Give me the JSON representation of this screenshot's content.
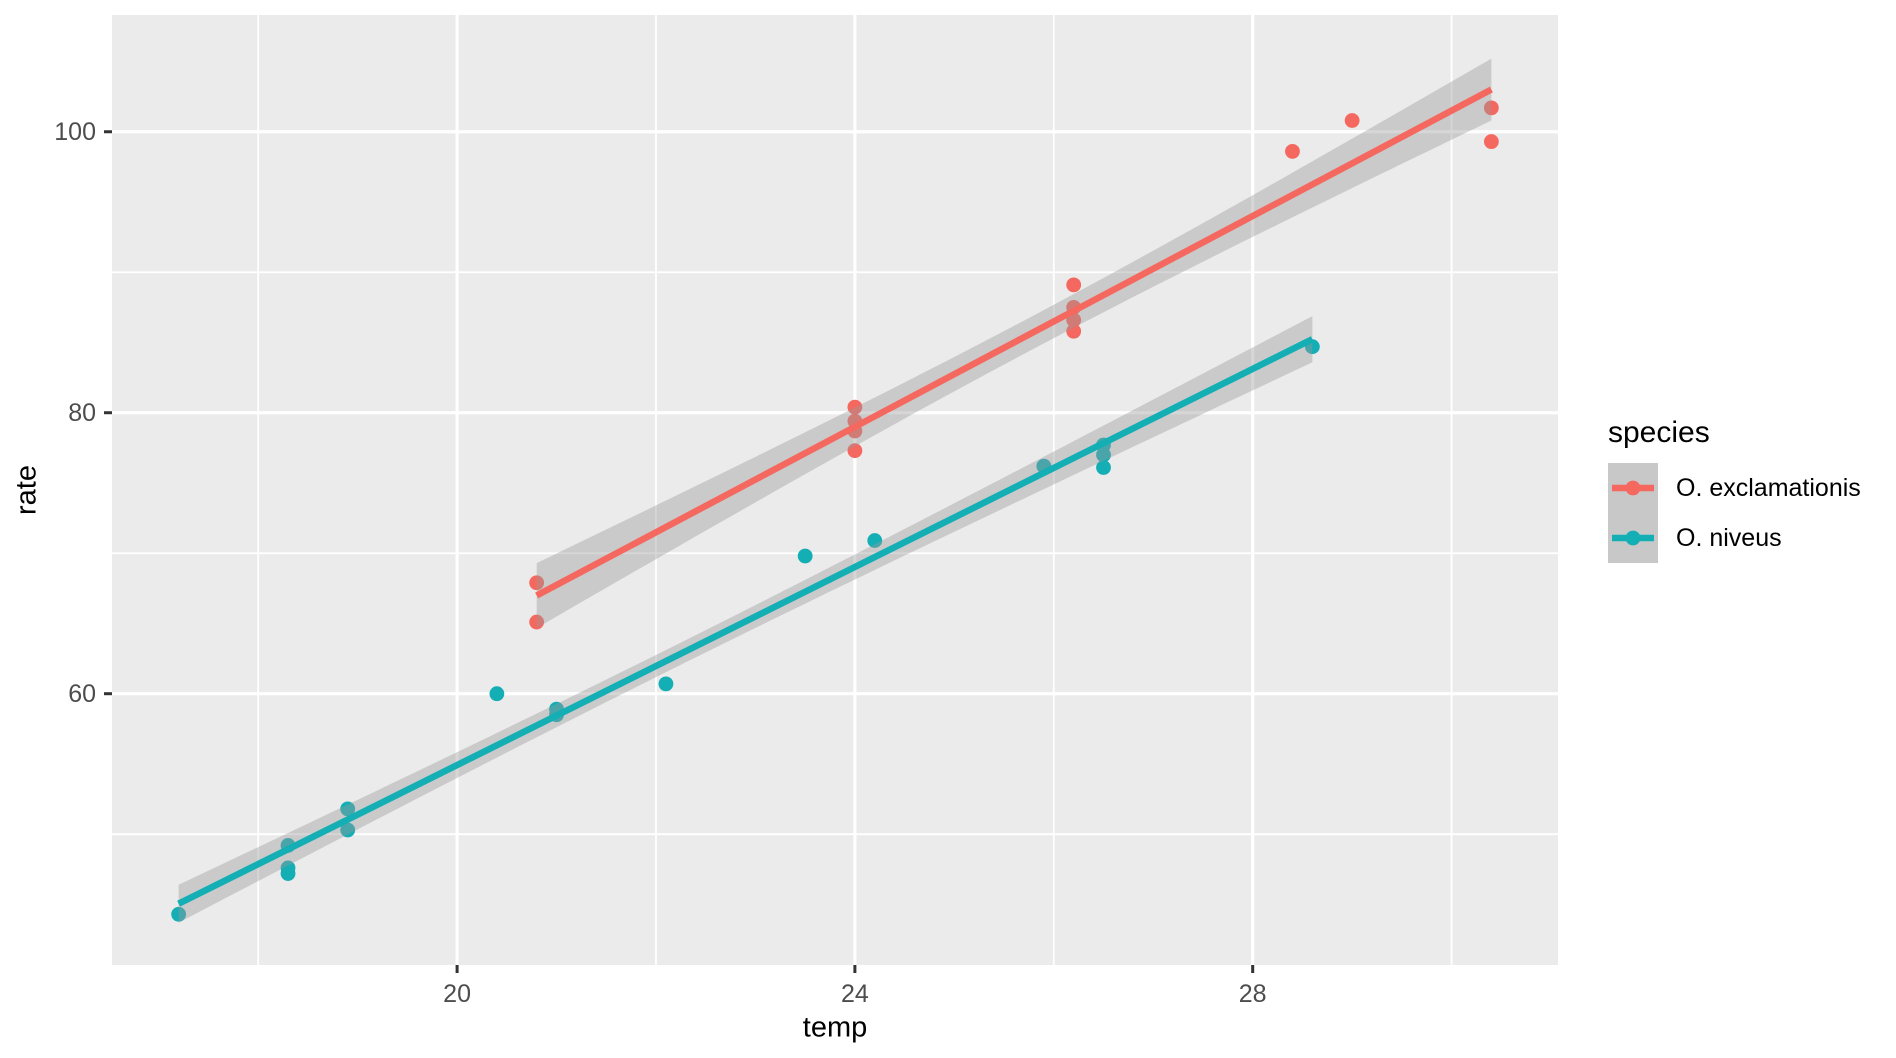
{
  "figure": {
    "background": "#FFFFFF",
    "panel_background": "#EBEBEB",
    "grid_color": "#FFFFFF",
    "tick_color": "#333333",
    "axis_text_color": "#4D4D4D",
    "title_text_color": "#000000",
    "ribbon_color": "#999999",
    "ribbon_opacity": 0.4,
    "legend_key_fill": "#C8C8C8"
  },
  "chart_data": {
    "type": "scatter",
    "title": "",
    "xlabel": "temp",
    "ylabel": "rate",
    "legend_title": "species",
    "legend_position": "right",
    "grid": "on",
    "xlim": [
      16.53,
      31.07
    ],
    "ylim": [
      40.69,
      108.31
    ],
    "x_ticks": [
      20,
      24,
      28
    ],
    "x_minor_ticks": [
      18,
      22,
      26,
      30
    ],
    "y_ticks": [
      60,
      80,
      100
    ],
    "y_minor_ticks": [
      50,
      70,
      90
    ],
    "smooth": {
      "method": "lm",
      "ci": 0.95,
      "ribbon": true
    },
    "series": [
      {
        "name": "O. exclamationis",
        "color": "#F4685F",
        "points": [
          [
            20.8,
            67.9
          ],
          [
            20.8,
            65.1
          ],
          [
            24.0,
            77.3
          ],
          [
            24.0,
            78.7
          ],
          [
            24.0,
            79.4
          ],
          [
            24.0,
            80.4
          ],
          [
            26.2,
            85.8
          ],
          [
            26.2,
            86.6
          ],
          [
            26.2,
            87.5
          ],
          [
            26.2,
            89.1
          ],
          [
            28.4,
            98.6
          ],
          [
            29.0,
            100.8
          ],
          [
            30.4,
            99.3
          ],
          [
            30.4,
            101.7
          ]
        ]
      },
      {
        "name": "O. niveus",
        "color": "#14AEB5",
        "points": [
          [
            17.2,
            44.3
          ],
          [
            18.3,
            47.2
          ],
          [
            18.3,
            47.6
          ],
          [
            18.3,
            49.2
          ],
          [
            18.9,
            50.3
          ],
          [
            18.9,
            51.8
          ],
          [
            20.4,
            60.0
          ],
          [
            21.0,
            58.5
          ],
          [
            21.0,
            58.9
          ],
          [
            22.1,
            60.7
          ],
          [
            23.5,
            69.8
          ],
          [
            24.2,
            70.9
          ],
          [
            25.9,
            76.2
          ],
          [
            26.5,
            76.1
          ],
          [
            26.5,
            77.0
          ],
          [
            26.5,
            77.7
          ],
          [
            28.6,
            84.7
          ]
        ]
      }
    ]
  }
}
